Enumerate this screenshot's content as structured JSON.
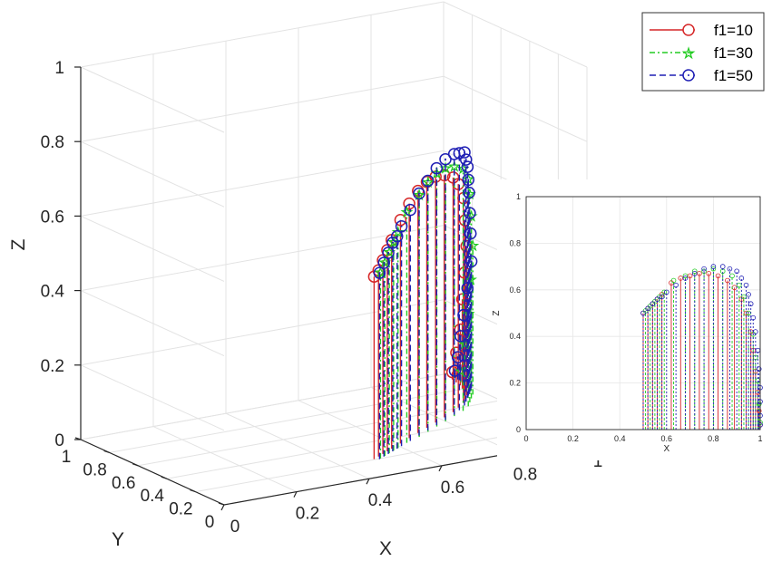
{
  "chart_data": [
    {
      "type": "3d-stem",
      "title": "",
      "xlabel": "X",
      "ylabel": "Y",
      "zlabel": "Z",
      "xlim": [
        0,
        1
      ],
      "ylim": [
        0,
        1
      ],
      "zlim": [
        0,
        1
      ],
      "x_ticks": [
        "0",
        "0.2",
        "0.4",
        "0.6",
        "0.8",
        "1"
      ],
      "y_ticks": [
        "0",
        "0.2",
        "0.4",
        "0.6",
        "0.8",
        "1"
      ],
      "z_ticks": [
        "0",
        "0.2",
        "0.4",
        "0.6",
        "0.8",
        "1"
      ],
      "grid": true,
      "legend_position": "top-right",
      "series": [
        {
          "name": "f1=10",
          "color": "#d62728",
          "line": "solid",
          "marker": "circle",
          "x": [
            0.5,
            0.52,
            0.54,
            0.56,
            0.58,
            0.62,
            0.66,
            0.7,
            0.74,
            0.78,
            0.82,
            0.86,
            0.89,
            0.92,
            0.94,
            0.96,
            0.97,
            0.98,
            0.99,
            0.995,
            1.0
          ],
          "y": [
            0.2,
            0.22,
            0.24,
            0.26,
            0.28,
            0.32,
            0.36,
            0.4,
            0.44,
            0.48,
            0.52,
            0.56,
            0.6,
            0.64,
            0.68,
            0.72,
            0.76,
            0.8,
            0.84,
            0.88,
            0.92
          ],
          "z": [
            0.49,
            0.5,
            0.52,
            0.54,
            0.56,
            0.6,
            0.63,
            0.65,
            0.66,
            0.66,
            0.65,
            0.63,
            0.6,
            0.55,
            0.48,
            0.4,
            0.32,
            0.24,
            0.15,
            0.08,
            0.02
          ]
        },
        {
          "name": "f1=30",
          "color": "#22cc22",
          "line": "dash-dot",
          "marker": "pentagram",
          "x": [
            0.51,
            0.53,
            0.55,
            0.57,
            0.59,
            0.63,
            0.68,
            0.72,
            0.76,
            0.8,
            0.84,
            0.88,
            0.91,
            0.93,
            0.95,
            0.97,
            0.98,
            0.99,
            0.995,
            1.0
          ],
          "y": [
            0.2,
            0.22,
            0.24,
            0.26,
            0.28,
            0.32,
            0.36,
            0.4,
            0.44,
            0.48,
            0.52,
            0.56,
            0.6,
            0.64,
            0.68,
            0.72,
            0.76,
            0.8,
            0.84,
            0.88
          ],
          "z": [
            0.5,
            0.52,
            0.54,
            0.56,
            0.58,
            0.62,
            0.65,
            0.67,
            0.68,
            0.68,
            0.67,
            0.65,
            0.61,
            0.56,
            0.49,
            0.4,
            0.3,
            0.2,
            0.11,
            0.03
          ]
        },
        {
          "name": "f1=50",
          "color": "#1f1fb4",
          "line": "dashed",
          "marker": "circle-dot",
          "x": [
            0.5,
            0.52,
            0.54,
            0.56,
            0.58,
            0.6,
            0.64,
            0.68,
            0.72,
            0.76,
            0.8,
            0.84,
            0.87,
            0.9,
            0.92,
            0.94,
            0.95,
            0.96,
            0.97,
            0.98,
            0.99,
            0.995,
            1.0,
            1.0,
            1.0,
            1.0
          ],
          "y": [
            0.2,
            0.22,
            0.24,
            0.26,
            0.28,
            0.3,
            0.34,
            0.38,
            0.42,
            0.46,
            0.5,
            0.54,
            0.58,
            0.62,
            0.66,
            0.7,
            0.72,
            0.74,
            0.76,
            0.78,
            0.8,
            0.84,
            0.88,
            0.9,
            0.92,
            0.94
          ],
          "z": [
            0.5,
            0.52,
            0.54,
            0.56,
            0.57,
            0.59,
            0.62,
            0.65,
            0.67,
            0.69,
            0.7,
            0.7,
            0.69,
            0.68,
            0.65,
            0.62,
            0.58,
            0.54,
            0.48,
            0.42,
            0.34,
            0.26,
            0.18,
            0.12,
            0.06,
            0.02
          ]
        }
      ]
    },
    {
      "type": "stem",
      "title": "",
      "xlabel": "X",
      "ylabel": "Z",
      "xlim": [
        0,
        1
      ],
      "ylim": [
        0,
        1
      ],
      "x_ticks": [
        "0",
        "0.2",
        "0.4",
        "0.6",
        "0.8",
        "1"
      ],
      "y_ticks": [
        "0",
        "0.2",
        "0.4",
        "0.6",
        "0.8",
        "1"
      ],
      "grid": true,
      "series": [
        {
          "name": "f1=10",
          "color": "#d62728",
          "x": [
            0.5,
            0.52,
            0.54,
            0.56,
            0.58,
            0.62,
            0.66,
            0.7,
            0.74,
            0.78,
            0.82,
            0.86,
            0.89,
            0.92,
            0.94,
            0.96,
            0.97,
            0.98,
            0.99,
            0.995,
            1.0
          ],
          "y": [
            0.5,
            0.52,
            0.54,
            0.56,
            0.58,
            0.63,
            0.65,
            0.66,
            0.67,
            0.67,
            0.66,
            0.64,
            0.61,
            0.56,
            0.5,
            0.42,
            0.34,
            0.25,
            0.16,
            0.08,
            0.02
          ]
        },
        {
          "name": "f1=30",
          "color": "#22cc22",
          "x": [
            0.51,
            0.53,
            0.55,
            0.57,
            0.59,
            0.63,
            0.68,
            0.72,
            0.76,
            0.8,
            0.84,
            0.88,
            0.91,
            0.93,
            0.95,
            0.97,
            0.98,
            0.99,
            0.995,
            1.0
          ],
          "y": [
            0.51,
            0.53,
            0.55,
            0.57,
            0.59,
            0.64,
            0.66,
            0.68,
            0.68,
            0.69,
            0.68,
            0.66,
            0.62,
            0.57,
            0.5,
            0.41,
            0.31,
            0.21,
            0.11,
            0.03
          ]
        },
        {
          "name": "f1=50",
          "color": "#1f1fb4",
          "x": [
            0.5,
            0.52,
            0.54,
            0.56,
            0.58,
            0.6,
            0.64,
            0.68,
            0.72,
            0.76,
            0.8,
            0.84,
            0.87,
            0.9,
            0.92,
            0.94,
            0.95,
            0.96,
            0.97,
            0.98,
            0.99,
            0.995,
            1.0,
            1.0,
            1.0,
            1.0
          ],
          "y": [
            0.5,
            0.52,
            0.54,
            0.56,
            0.57,
            0.59,
            0.62,
            0.65,
            0.67,
            0.69,
            0.7,
            0.7,
            0.69,
            0.68,
            0.65,
            0.62,
            0.58,
            0.54,
            0.48,
            0.42,
            0.34,
            0.26,
            0.18,
            0.12,
            0.06,
            0.02
          ]
        }
      ]
    }
  ]
}
